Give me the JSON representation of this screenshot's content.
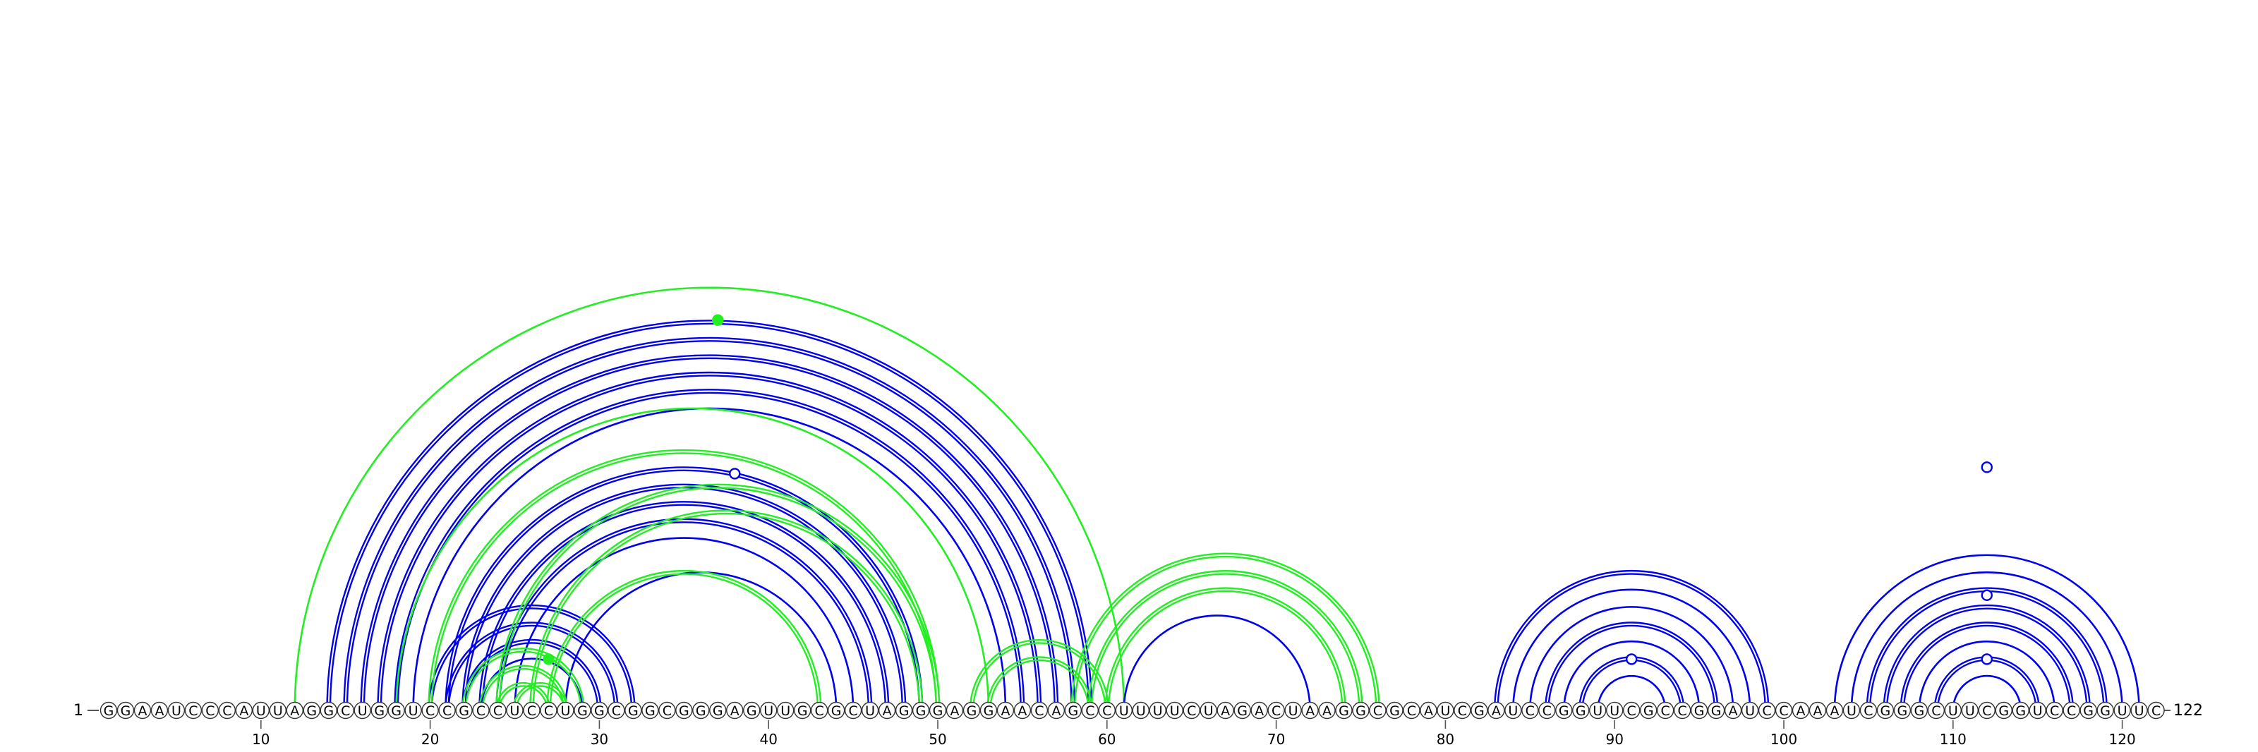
{
  "diagram": {
    "type": "rna-arc-diagram",
    "sequence": "GGAAUCCCAUUAGGCUGGUCCGCCUCCUGGCGGCGGGAGUUGCGCUAGGGAGGAACAGCCUUUUCUAGACUAAGGCGCAUCGAUCCGGUUCGCCGGAUCCAAAUCGGGCUUCGGUCCGGUUC",
    "start_label": "1",
    "end_label": "122",
    "ticks": [
      10,
      20,
      30,
      40,
      50,
      60,
      70,
      80,
      90,
      100,
      110,
      120
    ],
    "colors": {
      "blue": "#0000ee",
      "green": "#22ee22",
      "circle_stroke": "#333333",
      "axis": "#555555"
    },
    "arcs": [
      {
        "i": 14,
        "j": 59,
        "color": "blue",
        "double": true
      },
      {
        "i": 15,
        "j": 58,
        "color": "blue",
        "double": true
      },
      {
        "i": 16,
        "j": 57,
        "color": "blue",
        "double": true
      },
      {
        "i": 17,
        "j": 56,
        "color": "blue",
        "double": true
      },
      {
        "i": 18,
        "j": 55,
        "color": "blue",
        "double": true
      },
      {
        "i": 19,
        "j": 54,
        "color": "blue",
        "double": false
      },
      {
        "i": 21,
        "j": 49,
        "color": "blue",
        "double": true
      },
      {
        "i": 22,
        "j": 48,
        "color": "blue",
        "double": true
      },
      {
        "i": 23,
        "j": 47,
        "color": "blue",
        "double": true
      },
      {
        "i": 24,
        "j": 46,
        "color": "blue",
        "double": true
      },
      {
        "i": 25,
        "j": 45,
        "color": "blue",
        "double": false
      },
      {
        "i": 28,
        "j": 44,
        "color": "blue",
        "double": false
      },
      {
        "i": 20,
        "j": 32,
        "color": "blue",
        "double": true
      },
      {
        "i": 21,
        "j": 31,
        "color": "blue",
        "double": true
      },
      {
        "i": 22,
        "j": 30,
        "color": "blue",
        "double": true
      },
      {
        "i": 23,
        "j": 29,
        "color": "blue",
        "double": false
      },
      {
        "i": 12,
        "j": 61,
        "color": "green",
        "double": false
      },
      {
        "i": 18,
        "j": 53,
        "color": "green",
        "double": false
      },
      {
        "i": 20,
        "j": 50,
        "color": "green",
        "double": true
      },
      {
        "i": 24,
        "j": 50,
        "color": "green",
        "double": true
      },
      {
        "i": 26,
        "j": 49,
        "color": "green",
        "double": true
      },
      {
        "i": 27,
        "j": 43,
        "color": "green",
        "double": true
      },
      {
        "i": 22,
        "j": 29,
        "color": "green",
        "double": true
      },
      {
        "i": 23,
        "j": 28,
        "color": "green",
        "double": true
      },
      {
        "i": 24,
        "j": 27,
        "color": "green",
        "double": true
      },
      {
        "i": 25,
        "j": 28,
        "color": "green",
        "double": true
      },
      {
        "i": 52,
        "j": 60,
        "color": "green",
        "double": true
      },
      {
        "i": 53,
        "j": 59,
        "color": "green",
        "double": true
      },
      {
        "i": 58,
        "j": 76,
        "color": "green",
        "double": true
      },
      {
        "i": 59,
        "j": 75,
        "color": "green",
        "double": true
      },
      {
        "i": 60,
        "j": 74,
        "color": "green",
        "double": true
      },
      {
        "i": 61,
        "j": 72,
        "color": "blue",
        "double": false
      },
      {
        "i": 83,
        "j": 99,
        "color": "blue",
        "double": true
      },
      {
        "i": 84,
        "j": 98,
        "color": "blue",
        "double": false
      },
      {
        "i": 85,
        "j": 97,
        "color": "blue",
        "double": false
      },
      {
        "i": 86,
        "j": 96,
        "color": "blue",
        "double": true
      },
      {
        "i": 87,
        "j": 95,
        "color": "blue",
        "double": false
      },
      {
        "i": 88,
        "j": 94,
        "color": "blue",
        "double": true
      },
      {
        "i": 89,
        "j": 93,
        "color": "blue",
        "double": false
      },
      {
        "i": 103,
        "j": 121,
        "color": "blue",
        "double": false
      },
      {
        "i": 104,
        "j": 120,
        "color": "blue",
        "double": false
      },
      {
        "i": 105,
        "j": 119,
        "color": "blue",
        "double": true
      },
      {
        "i": 106,
        "j": 118,
        "color": "blue",
        "double": true
      },
      {
        "i": 107,
        "j": 117,
        "color": "blue",
        "double": true
      },
      {
        "i": 108,
        "j": 116,
        "color": "blue",
        "double": false
      },
      {
        "i": 109,
        "j": 115,
        "color": "blue",
        "double": true
      },
      {
        "i": 110,
        "j": 114,
        "color": "blue",
        "double": false
      }
    ],
    "markers": [
      {
        "pos": 37,
        "level": 0.61,
        "style": "filled",
        "color": "green"
      },
      {
        "pos": 38,
        "level": 0.37,
        "style": "hollow",
        "color": "blue"
      },
      {
        "pos": 27,
        "level": 0.08,
        "style": "filled",
        "color": "green"
      },
      {
        "pos": 91,
        "level": 0.08,
        "style": "hollow",
        "color": "blue"
      },
      {
        "pos": 112,
        "level": 0.38,
        "style": "hollow",
        "color": "blue"
      },
      {
        "pos": 112,
        "level": 0.18,
        "style": "hollow",
        "color": "blue"
      },
      {
        "pos": 112,
        "level": 0.08,
        "style": "hollow",
        "color": "blue"
      }
    ]
  }
}
